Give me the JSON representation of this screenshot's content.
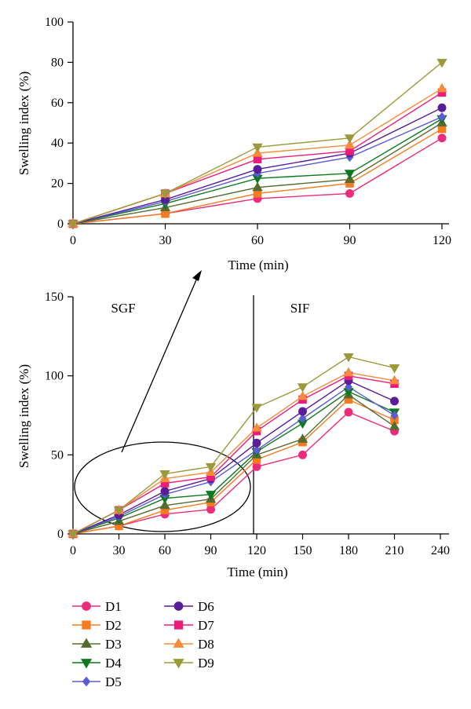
{
  "colors": {
    "D1": "#ee2a7b",
    "D2": "#f47b20",
    "D3": "#556b2f",
    "D4": "#0b7a1f",
    "D5": "#5b5bd6",
    "D6": "#5a1d9a",
    "D7": "#ec1c7a",
    "D8": "#f68b3a",
    "D9": "#9a9a3a"
  },
  "chart_data": [
    {
      "type": "line",
      "title": "",
      "xlabel": "Time (min)",
      "ylabel": "Swelling index (%)",
      "xlim": [
        0,
        120
      ],
      "ylim": [
        0,
        100
      ],
      "xticks": [
        0,
        30,
        60,
        90,
        120
      ],
      "yticks": [
        0,
        20,
        40,
        60,
        80,
        100
      ],
      "x": [
        0,
        30,
        60,
        90,
        120
      ],
      "series": [
        {
          "name": "D1",
          "marker": "circle",
          "values": [
            0,
            5,
            12.5,
            15,
            42.5
          ]
        },
        {
          "name": "D2",
          "marker": "square",
          "values": [
            0,
            5,
            15,
            20,
            47
          ]
        },
        {
          "name": "D3",
          "marker": "triangle-up",
          "values": [
            0,
            8,
            18,
            22,
            50
          ]
        },
        {
          "name": "D4",
          "marker": "triangle-down",
          "values": [
            0,
            10,
            22.5,
            25,
            52
          ]
        },
        {
          "name": "D5",
          "marker": "diamond",
          "values": [
            0,
            11,
            25,
            33,
            53
          ]
        },
        {
          "name": "D6",
          "marker": "circle",
          "values": [
            0,
            12,
            27,
            35,
            57.5
          ]
        },
        {
          "name": "D7",
          "marker": "square",
          "values": [
            0,
            15,
            32,
            36,
            65
          ]
        },
        {
          "name": "D8",
          "marker": "triangle-up",
          "values": [
            0,
            15,
            35,
            39,
            67
          ]
        },
        {
          "name": "D9",
          "marker": "triangle-down",
          "values": [
            0,
            15,
            38,
            42.5,
            80
          ]
        }
      ]
    },
    {
      "type": "line",
      "title": "",
      "xlabel": "Time (min)",
      "ylabel": "Swelling index (%)",
      "xlim": [
        0,
        240
      ],
      "ylim": [
        0,
        150
      ],
      "xticks": [
        0,
        30,
        60,
        90,
        120,
        150,
        180,
        210,
        240
      ],
      "yticks": [
        0,
        50,
        100,
        150
      ],
      "phase_labels": [
        "SGF",
        "SIF"
      ],
      "phase_boundary_x": 120,
      "x": [
        0,
        30,
        60,
        90,
        120,
        150,
        180,
        210
      ],
      "series": [
        {
          "name": "D1",
          "marker": "circle",
          "values": [
            0,
            5,
            12.5,
            15.5,
            42.5,
            50,
            77,
            65
          ]
        },
        {
          "name": "D2",
          "marker": "square",
          "values": [
            0,
            5,
            15,
            20,
            47,
            58,
            85,
            72
          ]
        },
        {
          "name": "D3",
          "marker": "triangle-up",
          "values": [
            0,
            8,
            18,
            22,
            50,
            60,
            88,
            68
          ]
        },
        {
          "name": "D4",
          "marker": "triangle-down",
          "values": [
            0,
            10,
            22.5,
            25,
            52,
            70,
            90,
            77
          ]
        },
        {
          "name": "D5",
          "marker": "diamond",
          "values": [
            0,
            11,
            25,
            33,
            53,
            73,
            93,
            75
          ]
        },
        {
          "name": "D6",
          "marker": "circle",
          "values": [
            0,
            12,
            27,
            35,
            57.5,
            77.5,
            97,
            84
          ]
        },
        {
          "name": "D7",
          "marker": "square",
          "values": [
            0,
            15,
            32,
            36,
            65,
            85,
            100,
            95
          ]
        },
        {
          "name": "D8",
          "marker": "triangle-up",
          "values": [
            0,
            15,
            35,
            39,
            67,
            87,
            102,
            97
          ]
        },
        {
          "name": "D9",
          "marker": "triangle-down",
          "values": [
            0,
            15,
            38,
            42.5,
            80,
            93,
            112,
            105
          ]
        }
      ]
    }
  ],
  "legend": {
    "placement": "bottom",
    "entries": [
      "D1",
      "D2",
      "D3",
      "D4",
      "D5",
      "D6",
      "D7",
      "D8",
      "D9"
    ]
  }
}
